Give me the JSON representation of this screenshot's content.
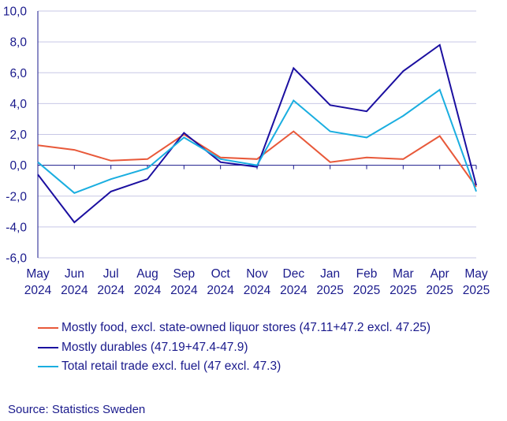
{
  "chart_data": {
    "type": "line",
    "categories": [
      [
        "May",
        "2024"
      ],
      [
        "Jun",
        "2024"
      ],
      [
        "Jul",
        "2024"
      ],
      [
        "Aug",
        "2024"
      ],
      [
        "Sep",
        "2024"
      ],
      [
        "Oct",
        "2024"
      ],
      [
        "Nov",
        "2024"
      ],
      [
        "Dec",
        "2024"
      ],
      [
        "Jan",
        "2025"
      ],
      [
        "Feb",
        "2025"
      ],
      [
        "Mar",
        "2025"
      ],
      [
        "Apr",
        "2025"
      ],
      [
        "May",
        "2025"
      ]
    ],
    "yticks": [
      "10,0",
      "8,0",
      "6,0",
      "4,0",
      "2,0",
      "0,0",
      "-2,0",
      "-4,0",
      "-6,0"
    ],
    "ylim": [
      -6,
      10
    ],
    "grid": true,
    "legend_position": "bottom",
    "series": [
      {
        "name": "Mostly food, excl. state-owned liquor stores (47.11+47.2 excl. 47.25)",
        "color": "#e8593a",
        "values": [
          1.3,
          1.0,
          0.3,
          0.4,
          2.0,
          0.5,
          0.4,
          2.2,
          0.2,
          0.5,
          0.4,
          1.9,
          -1.4
        ]
      },
      {
        "name": "Mostly durables (47.19+47.4-47.9)",
        "color": "#1b0fa0",
        "values": [
          -0.6,
          -3.7,
          -1.7,
          -0.9,
          2.1,
          0.2,
          -0.1,
          6.3,
          3.9,
          3.5,
          6.1,
          7.8,
          -1.3
        ]
      },
      {
        "name": "Total retail trade excl. fuel (47 excl. 47.3)",
        "color": "#1aaee0",
        "values": [
          0.2,
          -1.8,
          -0.9,
          -0.2,
          1.8,
          0.4,
          0.0,
          4.2,
          2.2,
          1.8,
          3.2,
          4.9,
          -1.7
        ]
      }
    ]
  },
  "source": "Source: Statistics Sweden"
}
